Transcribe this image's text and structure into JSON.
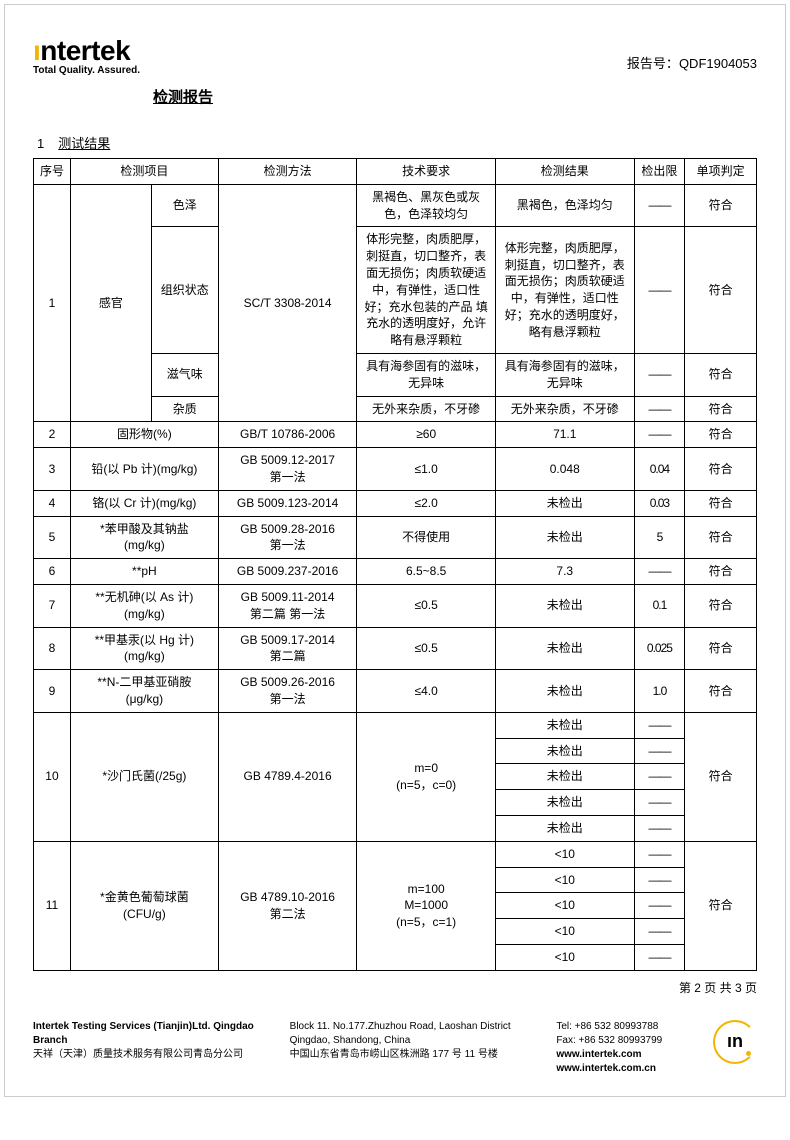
{
  "brand": {
    "name_pre": "ı",
    "name": "ntertek",
    "tagline": "Total Quality. Assured.",
    "icon_letter": "ın"
  },
  "report": {
    "no_label": "报告号：",
    "no": "QDF1904053",
    "title": "检测报告",
    "section_num": "1",
    "section_title": "测试结果",
    "pager": "第 2 页 共 3 页"
  },
  "columns": {
    "seq": "序号",
    "item": "检测项目",
    "method": "检测方法",
    "requirement": "技术要求",
    "result": "检测结果",
    "limit": "检出限",
    "judgement": "单项判定"
  },
  "row1": {
    "seq": "1",
    "item": "感官",
    "method": "SC/T 3308-2014",
    "sub1": {
      "name": "色泽",
      "req": "黑褐色、黑灰色或灰色，色泽较均匀",
      "res": "黑褐色，色泽均匀",
      "lim": "——",
      "jud": "符合"
    },
    "sub2": {
      "name": "组织状态",
      "req": "体形完整，肉质肥厚，刺挺直，切口整齐，表面无损伤；肉质软硬适中，有弹性，适口性好；充水包装的产品 填充水的透明度好，允许略有悬浮颗粒",
      "res": "体形完整，肉质肥厚，刺挺直，切口整齐，表面无损伤；肉质软硬适中，有弹性，适口性好；充水的透明度好，略有悬浮颗粒",
      "lim": "——",
      "jud": "符合"
    },
    "sub3": {
      "name": "滋气味",
      "req": "具有海参固有的滋味，无异味",
      "res": "具有海参固有的滋味，无异味",
      "lim": "——",
      "jud": "符合"
    },
    "sub4": {
      "name": "杂质",
      "req": "无外来杂质，不牙碜",
      "res": "无外来杂质，不牙碜",
      "lim": "——",
      "jud": "符合"
    }
  },
  "rows_simple": [
    {
      "seq": "2",
      "item": "固形物(%)",
      "method": "GB/T 10786-2006",
      "req": "≥60",
      "res": "71.1",
      "lim": "——",
      "jud": "符合"
    },
    {
      "seq": "3",
      "item": "铅(以 Pb 计)(mg/kg)",
      "method": "GB 5009.12-2017\n第一法",
      "req": "≤1.0",
      "res": "0.048",
      "lim": "0.04",
      "jud": "符合"
    },
    {
      "seq": "4",
      "item": "铬(以 Cr 计)(mg/kg)",
      "method": "GB 5009.123-2014",
      "req": "≤2.0",
      "res": "未检出",
      "lim": "0.03",
      "jud": "符合"
    },
    {
      "seq": "5",
      "item": "*苯甲酸及其钠盐\n(mg/kg)",
      "method": "GB 5009.28-2016\n第一法",
      "req": "不得使用",
      "res": "未检出",
      "lim": "5",
      "jud": "符合"
    },
    {
      "seq": "6",
      "item": "**pH",
      "method": "GB 5009.237-2016",
      "req": "6.5~8.5",
      "res": "7.3",
      "lim": "——",
      "jud": "符合"
    },
    {
      "seq": "7",
      "item": "**无机砷(以 As 计)\n(mg/kg)",
      "method": "GB 5009.11-2014\n第二篇 第一法",
      "req": "≤0.5",
      "res": "未检出",
      "lim": "0.1",
      "jud": "符合"
    },
    {
      "seq": "8",
      "item": "**甲基汞(以 Hg 计)\n(mg/kg)",
      "method": "GB 5009.17-2014\n第二篇",
      "req": "≤0.5",
      "res": "未检出",
      "lim": "0.025",
      "jud": "符合"
    },
    {
      "seq": "9",
      "item": "**N-二甲基亚硝胺\n(μg/kg)",
      "method": "GB 5009.26-2016\n第一法",
      "req": "≤4.0",
      "res": "未检出",
      "lim": "1.0",
      "jud": "符合"
    }
  ],
  "row10": {
    "seq": "10",
    "item": "*沙门氏菌(/25g)",
    "method": "GB 4789.4-2016",
    "req": "m=0\n(n=5，c=0)",
    "jud": "符合",
    "results": [
      "未检出",
      "未检出",
      "未检出",
      "未检出",
      "未检出"
    ],
    "limits": [
      "——",
      "——",
      "——",
      "——",
      "——"
    ]
  },
  "row11": {
    "seq": "11",
    "item": "*金黄色葡萄球菌\n(CFU/g)",
    "method": "GB 4789.10-2016\n第二法",
    "req": "m=100\nM=1000\n(n=5，c=1)",
    "jud": "符合",
    "results": [
      "<10",
      "<10",
      "<10",
      "<10",
      "<10"
    ],
    "limits": [
      "——",
      "——",
      "——",
      "——",
      "——"
    ]
  },
  "footer": {
    "company_en": "Intertek Testing Services (Tianjin)Ltd. Qingdao Branch",
    "company_cn": "天祥（天津）质量技术服务有限公司青岛分公司",
    "addr_en": "Block 11. No.177.Zhuzhou Road, Laoshan District Qingdao, Shandong, China",
    "addr_cn": "中国山东省青岛市崂山区株洲路 177 号 11 号楼",
    "tel": "Tel:  +86 532 80993788",
    "fax": "Fax: +86 532 80993799",
    "url1": "www.intertek.com",
    "url2": "www.intertek.com.cn"
  }
}
